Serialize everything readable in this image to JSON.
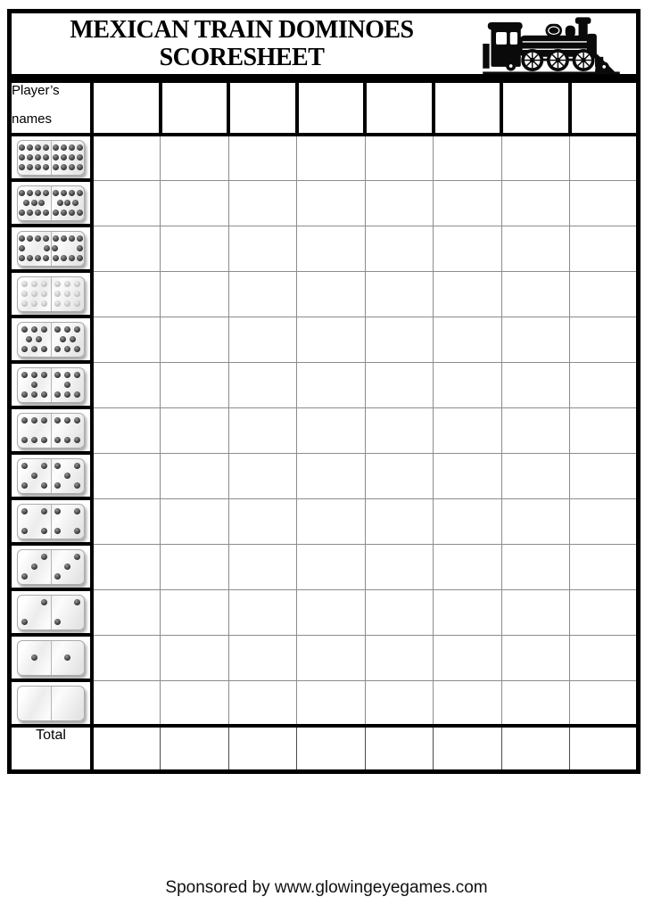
{
  "document": {
    "title_line1": "MEXICAN TRAIN DOMINOES",
    "title_line2": "SCORESHEET",
    "footer": "Sponsored by www.glowingeyegames.com"
  },
  "header_art": {
    "icon": "steam-locomotive"
  },
  "scoresheet": {
    "name_header": {
      "line1": "Player’s",
      "line2": "names"
    },
    "player_columns": 8,
    "total_label": "Total",
    "rounds": [
      {
        "id": "12-12",
        "pips_per_half": 12,
        "pip_style": "dark"
      },
      {
        "id": "11-11",
        "pips_per_half": 11,
        "pip_style": "dark"
      },
      {
        "id": "10-10",
        "pips_per_half": 10,
        "pip_style": "dark"
      },
      {
        "id": "9-9",
        "pips_per_half": 9,
        "pip_style": "light"
      },
      {
        "id": "8-8",
        "pips_per_half": 8,
        "pip_style": "dark"
      },
      {
        "id": "7-7",
        "pips_per_half": 7,
        "pip_style": "dark"
      },
      {
        "id": "6-6",
        "pips_per_half": 6,
        "pip_style": "dark"
      },
      {
        "id": "5-5",
        "pips_per_half": 5,
        "pip_style": "dark"
      },
      {
        "id": "4-4",
        "pips_per_half": 4,
        "pip_style": "dark"
      },
      {
        "id": "3-3",
        "pips_per_half": 3,
        "pip_style": "dark"
      },
      {
        "id": "2-2",
        "pips_per_half": 2,
        "pip_style": "dark"
      },
      {
        "id": "1-1",
        "pips_per_half": 1,
        "pip_style": "dark"
      },
      {
        "id": "0-0",
        "pips_per_half": 0,
        "pip_style": "dark"
      }
    ]
  },
  "colors": {
    "border": "#000000",
    "grid_line": "#8c8c8c",
    "total_divider": "#4a4a4a",
    "pip_dark": "#2e2e2e",
    "pip_light": "#bcbcbc",
    "page_bg": "#ffffff"
  }
}
